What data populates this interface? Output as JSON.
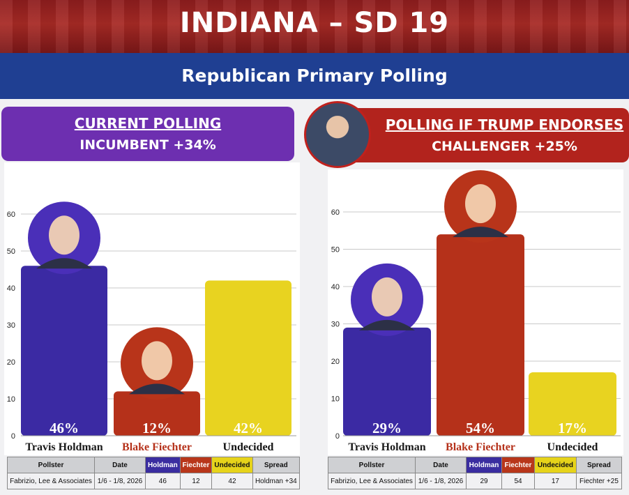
{
  "header": {
    "title": "INDIANA – SD 19",
    "subtitle": "Republican Primary Polling"
  },
  "colors": {
    "holdman": "#3b2aa3",
    "fiechter": "#b5311a",
    "undecided": "#e8d320",
    "left_header": "#6d2fb0",
    "right_header": "#b2231d",
    "subtitle_bar": "#1f3f92"
  },
  "panels": [
    {
      "title": "CURRENT POLLING",
      "subtitle": "INCUMBENT +34%",
      "table": {
        "headers": [
          "Pollster",
          "Date",
          "Holdman",
          "Fiechter",
          "Undecided",
          "Spread"
        ],
        "row": [
          "Fabrizio, Lee & Associates",
          "1/6 - 1/8, 2026",
          "46",
          "12",
          "42",
          "Holdman +34"
        ]
      }
    },
    {
      "title": "POLLING IF TRUMP ENDORSES",
      "subtitle": "CHALLENGER +25%",
      "table": {
        "headers": [
          "Pollster",
          "Date",
          "Holdman",
          "Fiechter",
          "Undecided",
          "Spread"
        ],
        "row": [
          "Fabrizio, Lee & Associates",
          "1/6 - 1/8, 2026",
          "29",
          "54",
          "17",
          "Fiechter +25"
        ]
      }
    }
  ],
  "chart_data": [
    {
      "type": "bar",
      "title": "CURRENT POLLING",
      "categories": [
        "Travis Holdman",
        "Blake Fiechter",
        "Undecided"
      ],
      "values": [
        46,
        12,
        42
      ],
      "value_labels": [
        "46%",
        "12%",
        "42%"
      ],
      "ylim": [
        0,
        70
      ],
      "yticks": [
        0,
        10,
        20,
        30,
        40,
        50,
        60
      ],
      "grid": true
    },
    {
      "type": "bar",
      "title": "POLLING IF TRUMP ENDORSES",
      "categories": [
        "Travis Holdman",
        "Blake Fiechter",
        "Undecided"
      ],
      "values": [
        29,
        54,
        17
      ],
      "value_labels": [
        "29%",
        "54%",
        "17%"
      ],
      "ylim": [
        0,
        70
      ],
      "yticks": [
        0,
        10,
        20,
        30,
        40,
        50,
        60
      ],
      "grid": true
    }
  ]
}
